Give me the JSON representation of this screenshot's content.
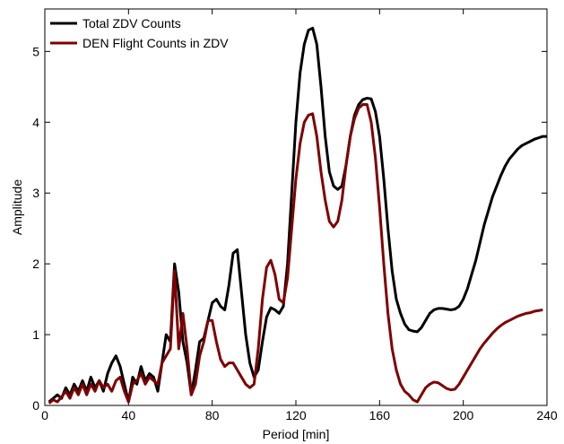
{
  "chart_data": {
    "type": "line",
    "xlabel": "Period [min]",
    "ylabel": "Amplitude",
    "x": [
      2,
      4,
      6,
      8,
      10,
      12,
      14,
      16,
      18,
      20,
      22,
      24,
      26,
      28,
      30,
      32,
      34,
      36,
      38,
      40,
      42,
      44,
      46,
      48,
      50,
      52,
      54,
      56,
      58,
      60,
      62,
      64,
      66,
      68,
      70,
      72,
      74,
      76,
      78,
      80,
      82,
      84,
      86,
      88,
      90,
      92,
      94,
      96,
      98,
      100,
      102,
      104,
      106,
      108,
      110,
      112,
      114,
      116,
      118,
      120,
      122,
      124,
      126,
      128,
      130,
      132,
      134,
      136,
      138,
      140,
      142,
      144,
      146,
      148,
      150,
      152,
      154,
      156,
      158,
      160,
      162,
      164,
      166,
      168,
      170,
      172,
      174,
      176,
      178,
      180,
      182,
      184,
      186,
      188,
      190,
      192,
      194,
      196,
      198,
      200,
      202,
      204,
      206,
      208,
      210,
      212,
      214,
      216,
      218,
      220,
      222,
      224,
      226,
      228,
      230,
      232,
      234,
      236,
      238,
      240
    ],
    "series": [
      {
        "name": "Total ZDV Counts",
        "color": "#000000",
        "values": [
          0.05,
          0.1,
          0.15,
          0.1,
          0.25,
          0.15,
          0.3,
          0.2,
          0.35,
          0.2,
          0.4,
          0.25,
          0.35,
          0.2,
          0.45,
          0.6,
          0.7,
          0.55,
          0.3,
          0.05,
          0.4,
          0.3,
          0.55,
          0.35,
          0.45,
          0.4,
          0.2,
          0.6,
          1.0,
          0.9,
          2.0,
          1.6,
          0.9,
          0.6,
          0.15,
          0.5,
          0.9,
          0.95,
          1.2,
          1.45,
          1.5,
          1.4,
          1.35,
          1.7,
          2.15,
          2.2,
          1.6,
          1.0,
          0.6,
          0.4,
          0.5,
          0.9,
          1.25,
          1.38,
          1.35,
          1.3,
          1.4,
          2.0,
          3.0,
          4.0,
          4.7,
          5.1,
          5.3,
          5.33,
          5.1,
          4.5,
          3.8,
          3.3,
          3.1,
          3.05,
          3.1,
          3.4,
          3.8,
          4.1,
          4.25,
          4.32,
          4.34,
          4.33,
          4.15,
          3.8,
          3.2,
          2.5,
          1.9,
          1.5,
          1.3,
          1.15,
          1.07,
          1.05,
          1.04,
          1.1,
          1.2,
          1.3,
          1.35,
          1.37,
          1.37,
          1.36,
          1.35,
          1.36,
          1.4,
          1.5,
          1.65,
          1.85,
          2.05,
          2.3,
          2.55,
          2.75,
          2.95,
          3.1,
          3.25,
          3.38,
          3.48,
          3.55,
          3.62,
          3.67,
          3.7,
          3.73,
          3.76,
          3.78,
          3.8,
          3.8
        ]
      },
      {
        "name": "DEN Flight Counts in ZDV",
        "color": "#7f0000",
        "values": [
          0.03,
          0.08,
          0.05,
          0.12,
          0.2,
          0.1,
          0.25,
          0.15,
          0.3,
          0.15,
          0.3,
          0.2,
          0.35,
          0.25,
          0.3,
          0.2,
          0.35,
          0.4,
          0.2,
          0.05,
          0.3,
          0.35,
          0.45,
          0.3,
          0.4,
          0.35,
          0.3,
          0.6,
          0.7,
          0.8,
          1.9,
          0.8,
          1.3,
          0.8,
          0.15,
          0.3,
          0.7,
          0.9,
          1.2,
          1.2,
          0.9,
          0.65,
          0.55,
          0.6,
          0.6,
          0.5,
          0.4,
          0.3,
          0.25,
          0.3,
          0.8,
          1.5,
          1.95,
          2.05,
          1.85,
          1.5,
          1.45,
          1.8,
          2.5,
          3.2,
          3.7,
          4.0,
          4.1,
          4.12,
          3.8,
          3.3,
          2.9,
          2.6,
          2.52,
          2.6,
          2.9,
          3.4,
          3.8,
          4.05,
          4.2,
          4.25,
          4.25,
          4.0,
          3.5,
          2.8,
          2.0,
          1.3,
          0.8,
          0.5,
          0.3,
          0.2,
          0.15,
          0.08,
          0.05,
          0.15,
          0.25,
          0.3,
          0.33,
          0.32,
          0.28,
          0.24,
          0.22,
          0.23,
          0.3,
          0.4,
          0.5,
          0.6,
          0.7,
          0.8,
          0.88,
          0.95,
          1.02,
          1.08,
          1.13,
          1.17,
          1.2,
          1.23,
          1.26,
          1.28,
          1.3,
          1.31,
          1.33,
          1.34,
          1.35,
          null
        ]
      }
    ],
    "xlim": [
      0,
      240
    ],
    "xticks": [
      0,
      40,
      80,
      120,
      160,
      200,
      240
    ],
    "ylim": [
      0,
      5.6
    ],
    "yticks": [
      0,
      1,
      2,
      3,
      4,
      5
    ],
    "legend": "upper-left"
  }
}
